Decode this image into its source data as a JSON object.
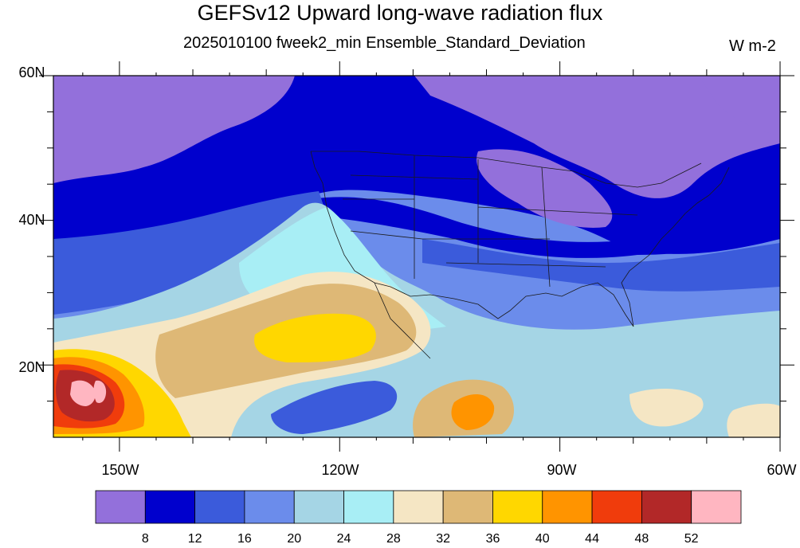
{
  "title": "GEFSv12 Upward long-wave radiation flux",
  "subtitle": "2025010100 fweek2_min Ensemble_Standard_Deviation",
  "units": "W m-2",
  "map": {
    "lat_labels": [
      "60N",
      "40N",
      "20N"
    ],
    "lon_labels": [
      "150W",
      "120W",
      "90W",
      "60W"
    ],
    "lat_ticks": [
      60,
      40,
      20
    ],
    "lon_ticks": [
      -150,
      -120,
      -90,
      -60
    ],
    "extent": {
      "lon_min": -159,
      "lon_max": -60,
      "lat_min": 10,
      "lat_max": 60
    }
  },
  "colorbar": {
    "labels": [
      "8",
      "12",
      "16",
      "20",
      "24",
      "28",
      "32",
      "36",
      "40",
      "44",
      "48",
      "52"
    ],
    "colors": [
      "#9370DB",
      "#0000CD",
      "#3B5BDB",
      "#6B8CEB",
      "#A5D5E5",
      "#A8EEF5",
      "#F5E6C4",
      "#DEB876",
      "#FFD700",
      "#FF9400",
      "#F03C0C",
      "#B22828",
      "#FFB6C1"
    ]
  },
  "chart_data": {
    "type": "heatmap",
    "title": "GEFSv12 Upward long-wave radiation flux",
    "subtitle": "2025010100 fweek2_min Ensemble_Standard_Deviation",
    "units": "W m-2",
    "x_range": [
      -159,
      -60
    ],
    "y_range": [
      10,
      60
    ],
    "levels": [
      8,
      12,
      16,
      20,
      24,
      28,
      32,
      36,
      40,
      44,
      48,
      52
    ]
  }
}
